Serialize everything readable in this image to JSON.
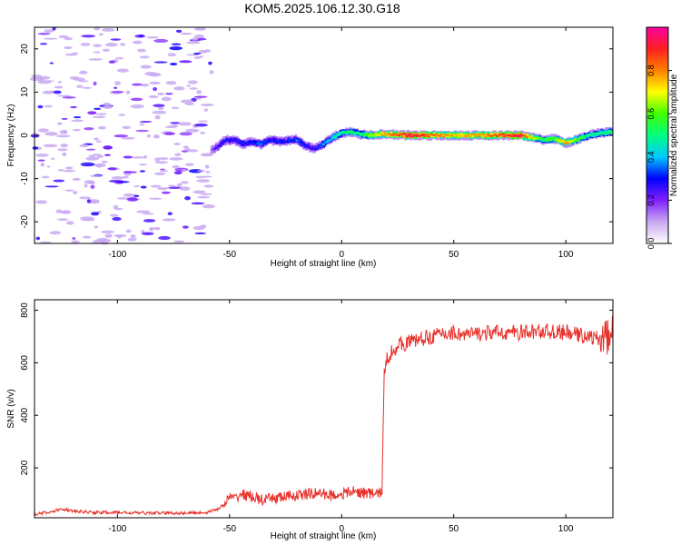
{
  "title": "KOM5.2025.106.12.30.G18",
  "colors": {
    "snr_line": "#e8302a",
    "frame": "#000000",
    "background": "#ffffff"
  },
  "chart_data": [
    {
      "type": "heatmap",
      "title": "KOM5.2025.106.12.30.G18",
      "xlabel": "Height of straight line (km)",
      "ylabel": "Frequency (Hz)",
      "xlim": [
        -137,
        121
      ],
      "ylim": [
        -25,
        25
      ],
      "x_ticks": [
        -100,
        -50,
        0,
        50,
        100
      ],
      "y_ticks": [
        -20,
        -10,
        0,
        10,
        20
      ],
      "grid": false,
      "colorbar": {
        "label": "Normalized spectral amplitude",
        "range": [
          0,
          1
        ],
        "ticks": [
          "0.0",
          "0.2",
          "0.4",
          "0.6",
          "0.8"
        ],
        "colormap": [
          "#ffffff",
          "#c8a8f0",
          "#8020ff",
          "#0000ff",
          "#00c8ff",
          "#00ff80",
          "#40ff00",
          "#ffff00",
          "#ff8000",
          "#ff2020",
          "#ff00a0"
        ]
      },
      "ridge": {
        "x": [
          -58,
          -55,
          -52,
          -48,
          -44,
          -40,
          -36,
          -32,
          -28,
          -24,
          -20,
          -16,
          -12,
          -8,
          -4,
          0,
          4,
          8,
          12,
          16,
          20,
          30,
          40,
          50,
          60,
          70,
          80,
          85,
          90,
          95,
          100,
          105,
          110,
          115,
          121
        ],
        "frequency": [
          -3.5,
          -2.5,
          -1.2,
          -1.0,
          -2.0,
          -1.5,
          -2.0,
          -1.0,
          -1.5,
          -1.2,
          -1.0,
          -2.5,
          -3.0,
          -2.0,
          -0.5,
          0.5,
          0.8,
          0.3,
          0.0,
          0.2,
          0.3,
          0.0,
          0.0,
          0.0,
          0.0,
          0.0,
          0.0,
          -0.5,
          -1.0,
          -0.8,
          -1.8,
          -1.0,
          0.0,
          0.5,
          0.8
        ],
        "amplitude": [
          0.15,
          0.25,
          0.3,
          0.28,
          0.3,
          0.32,
          0.35,
          0.3,
          0.32,
          0.3,
          0.35,
          0.3,
          0.25,
          0.4,
          0.45,
          0.5,
          0.55,
          0.5,
          0.6,
          0.7,
          0.8,
          0.95,
          0.85,
          0.75,
          0.78,
          0.85,
          0.95,
          0.7,
          0.55,
          0.6,
          0.8,
          0.6,
          0.5,
          0.5,
          0.55
        ]
      },
      "noise_region": {
        "x": [
          -137,
          -58
        ],
        "amplitude": [
          0.0,
          0.25
        ]
      }
    },
    {
      "type": "line",
      "xlabel": "Height of straight line (km)",
      "ylabel": "SNR (v/v)",
      "xlim": [
        -137,
        121
      ],
      "ylim": [
        10,
        840
      ],
      "x_ticks": [
        -100,
        -50,
        0,
        50,
        100
      ],
      "y_ticks": [
        200,
        400,
        600,
        800
      ],
      "grid": false,
      "series": [
        {
          "x": [
            -137,
            -130,
            -125,
            -120,
            -110,
            -100,
            -90,
            -80,
            -70,
            -60,
            -55,
            -52,
            -50,
            -48,
            -45,
            -40,
            -35,
            -30,
            -25,
            -20,
            -15,
            -10,
            -5,
            0,
            5,
            10,
            15,
            18,
            19,
            20,
            22,
            25,
            30,
            35,
            40,
            45,
            50,
            55,
            60,
            70,
            80,
            90,
            100,
            110,
            115,
            120,
            121
          ],
          "y": [
            25,
            30,
            45,
            35,
            30,
            30,
            28,
            28,
            28,
            30,
            45,
            60,
            90,
            80,
            100,
            90,
            75,
            85,
            90,
            95,
            100,
            105,
            95,
            100,
            110,
            105,
            100,
            110,
            550,
            610,
            640,
            665,
            680,
            690,
            700,
            710,
            715,
            705,
            710,
            715,
            715,
            720,
            715,
            700,
            690,
            700,
            720
          ]
        }
      ]
    }
  ]
}
